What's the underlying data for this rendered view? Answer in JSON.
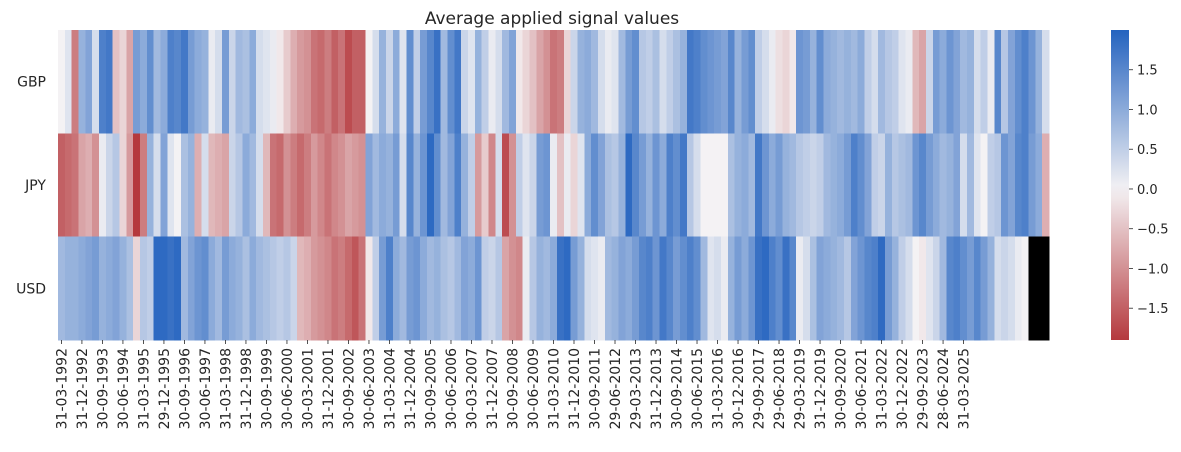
{
  "chart_data": {
    "type": "heatmap",
    "title": "Average applied signal values",
    "rows": [
      "GBP",
      "JPY",
      "USD"
    ],
    "x_tick_labels": [
      "31-03-1992",
      "31-12-1992",
      "30-09-1993",
      "30-06-1994",
      "31-03-1995",
      "29-12-1995",
      "30-09-1996",
      "30-06-1997",
      "31-03-1998",
      "31-12-1998",
      "30-09-1999",
      "30-06-2000",
      "30-03-2001",
      "31-12-2001",
      "30-09-2002",
      "30-06-2003",
      "31-03-2004",
      "31-12-2004",
      "30-09-2005",
      "30-06-2006",
      "30-03-2007",
      "31-12-2007",
      "30-09-2008",
      "30-06-2009",
      "31-03-2010",
      "31-12-2010",
      "30-09-2011",
      "29-06-2012",
      "29-03-2013",
      "31-12-2013",
      "30-09-2014",
      "30-06-2015",
      "31-03-2016",
      "30-12-2016",
      "29-09-2017",
      "29-06-2018",
      "29-03-2019",
      "31-12-2019",
      "30-09-2020",
      "30-06-2021",
      "31-03-2022",
      "30-12-2022",
      "29-09-2023",
      "28-06-2024",
      "31-03-2025"
    ],
    "columns_per_tick": 3,
    "values": [
      [
        0.0,
        0.2,
        -1.2,
        0.9,
        1.1,
        0.3,
        1.6,
        1.7,
        -0.5,
        -0.3,
        -0.8,
        1.2,
        1.0,
        1.4,
        0.8,
        1.0,
        1.6,
        1.5,
        1.7,
        1.2,
        1.0,
        0.9,
        0.1,
        0.3,
        1.2,
        0.4,
        0.8,
        0.7,
        1.0,
        0.3,
        0.2,
        0.1,
        -0.1,
        -0.4,
        -0.7,
        -0.9,
        -1.0,
        -1.3,
        -1.4,
        -1.2,
        -1.5,
        -1.3,
        -1.7,
        -1.5,
        -1.5,
        0.0,
        0.3,
        0.9,
        0.4,
        1.0,
        0.2,
        1.4,
        0.5,
        1.2,
        1.5,
        1.8,
        0.8,
        1.4,
        1.7,
        0.4,
        0.2,
        0.9,
        0.5,
        0.1,
        0.3,
        0.8,
        1.1,
        -0.1,
        -0.3,
        -0.5,
        -0.8,
        -1.0,
        -1.3,
        -1.2,
        -0.3,
        0.4,
        0.9,
        1.0,
        0.8,
        0.3,
        0.1,
        0.2,
        0.8,
        1.2,
        1.4,
        0.6,
        0.5,
        0.7,
        0.3,
        0.5,
        0.7,
        0.9,
        1.7,
        1.6,
        1.4,
        1.3,
        1.2,
        1.1,
        1.5,
        0.9,
        1.2,
        1.4,
        0.5,
        0.3,
        0.1,
        -0.2,
        -0.3,
        -0.1,
        1.3,
        1.2,
        0.9,
        1.4,
        1.0,
        0.9,
        0.8,
        0.9,
        0.8,
        1.0,
        0.5,
        0.3,
        0.8,
        0.6,
        0.5,
        0.2,
        0.1,
        -0.6,
        -0.8,
        0.4,
        1.2,
        1.0,
        1.3,
        1.1,
        0.8,
        0.9,
        0.3,
        0.5,
        0.1,
        1.5,
        0.6,
        1.1,
        1.4,
        1.6,
        1.3,
        0.9,
        0.3
      ],
      [
        -1.5,
        -1.4,
        -1.3,
        -0.8,
        -0.7,
        -1.0,
        0.1,
        0.4,
        0.6,
        -0.3,
        -0.9,
        -1.9,
        -1.2,
        0.9,
        0.3,
        1.1,
        0.2,
        0.0,
        0.7,
        0.9,
        -0.7,
        0.3,
        -0.6,
        -0.7,
        -0.8,
        0.4,
        0.6,
        1.0,
        0.8,
        0.3,
        -0.6,
        -1.3,
        -1.4,
        -1.0,
        -1.2,
        -1.4,
        -1.2,
        -0.9,
        -1.1,
        -1.3,
        -1.1,
        -1.0,
        -0.8,
        -0.9,
        -1.0,
        1.1,
        0.8,
        1.0,
        0.9,
        1.2,
        0.3,
        1.5,
        0.9,
        1.3,
        1.9,
        1.4,
        0.8,
        1.1,
        1.6,
        0.9,
        0.5,
        -0.9,
        -0.4,
        -1.1,
        0.3,
        -1.7,
        -1.0,
        0.5,
        0.2,
        0.4,
        1.2,
        1.3,
        0.1,
        -0.5,
        0.1,
        -0.3,
        0.2,
        1.0,
        1.4,
        1.1,
        0.7,
        0.6,
        0.9,
        1.9,
        1.5,
        1.2,
        0.9,
        1.3,
        1.0,
        1.6,
        1.4,
        1.7,
        0.6,
        0.3,
        0.0,
        0.0,
        0.0,
        0.0,
        0.7,
        0.9,
        1.0,
        0.8,
        1.7,
        1.3,
        1.0,
        1.2,
        0.9,
        0.8,
        0.6,
        0.5,
        0.4,
        0.5,
        0.8,
        0.9,
        1.0,
        1.2,
        1.6,
        1.4,
        1.1,
        0.5,
        0.4,
        0.9,
        0.6,
        0.7,
        0.8,
        1.3,
        1.5,
        1.2,
        1.0,
        0.8,
        0.9,
        1.1,
        0.3,
        0.8,
        0.2,
        0.0,
        0.5,
        0.6,
        1.3,
        1.1,
        1.5,
        1.6,
        1.2,
        1.0,
        -0.7
      ],
      [
        0.8,
        0.9,
        0.9,
        1.0,
        1.1,
        1.2,
        0.9,
        1.0,
        1.1,
        0.9,
        0.7,
        -0.3,
        0.6,
        0.5,
        1.9,
        1.9,
        1.8,
        1.9,
        0.8,
        1.1,
        1.3,
        1.4,
        1.0,
        0.8,
        1.2,
        1.0,
        0.9,
        0.7,
        1.0,
        0.8,
        0.7,
        0.6,
        0.5,
        0.6,
        0.4,
        -0.6,
        -0.7,
        -0.9,
        -1.0,
        -1.1,
        -1.3,
        -1.2,
        -1.4,
        -1.6,
        -1.3,
        -0.1,
        0.5,
        1.2,
        1.6,
        1.0,
        0.8,
        1.2,
        1.3,
        1.0,
        0.8,
        0.9,
        0.7,
        0.6,
        0.8,
        1.1,
        1.0,
        1.3,
        0.5,
        0.4,
        0.6,
        -0.8,
        -1.0,
        -1.1,
        0.1,
        0.6,
        0.9,
        0.8,
        1.0,
        1.8,
        1.9,
        1.2,
        0.9,
        0.3,
        0.2,
        0.1,
        0.8,
        0.9,
        1.1,
        1.0,
        1.2,
        1.5,
        1.6,
        1.3,
        1.7,
        1.5,
        1.2,
        1.4,
        1.6,
        1.4,
        0.8,
        0.2,
        0.3,
        0.1,
        0.9,
        1.2,
        1.0,
        1.3,
        1.8,
        1.9,
        1.6,
        1.4,
        1.8,
        1.5,
        0.1,
        0.3,
        0.7,
        1.1,
        1.0,
        0.9,
        0.8,
        0.6,
        1.1,
        1.3,
        1.5,
        1.6,
        1.9,
        1.2,
        0.9,
        0.5,
        0.3,
        0.0,
        -0.1,
        0.2,
        0.4,
        0.8,
        1.5,
        1.6,
        1.4,
        1.2,
        1.5,
        1.2,
        0.9,
        0.3,
        0.4,
        0.3,
        0.1,
        0.0
      ]
    ],
    "colorbar": {
      "vmin": -1.9,
      "vmax": 2.0,
      "ticks": [
        -1.5,
        -1.0,
        -0.5,
        0.0,
        0.5,
        1.0,
        1.5
      ],
      "tick_labels": [
        "−1.5",
        "−1.0",
        "−0.5",
        "0.0",
        "0.5",
        "1.0",
        "1.5"
      ],
      "colors": {
        "low": "#b5393d",
        "mid": "#f4f2f4",
        "high": "#2463bf"
      }
    },
    "xlabel": "",
    "ylabel": ""
  }
}
